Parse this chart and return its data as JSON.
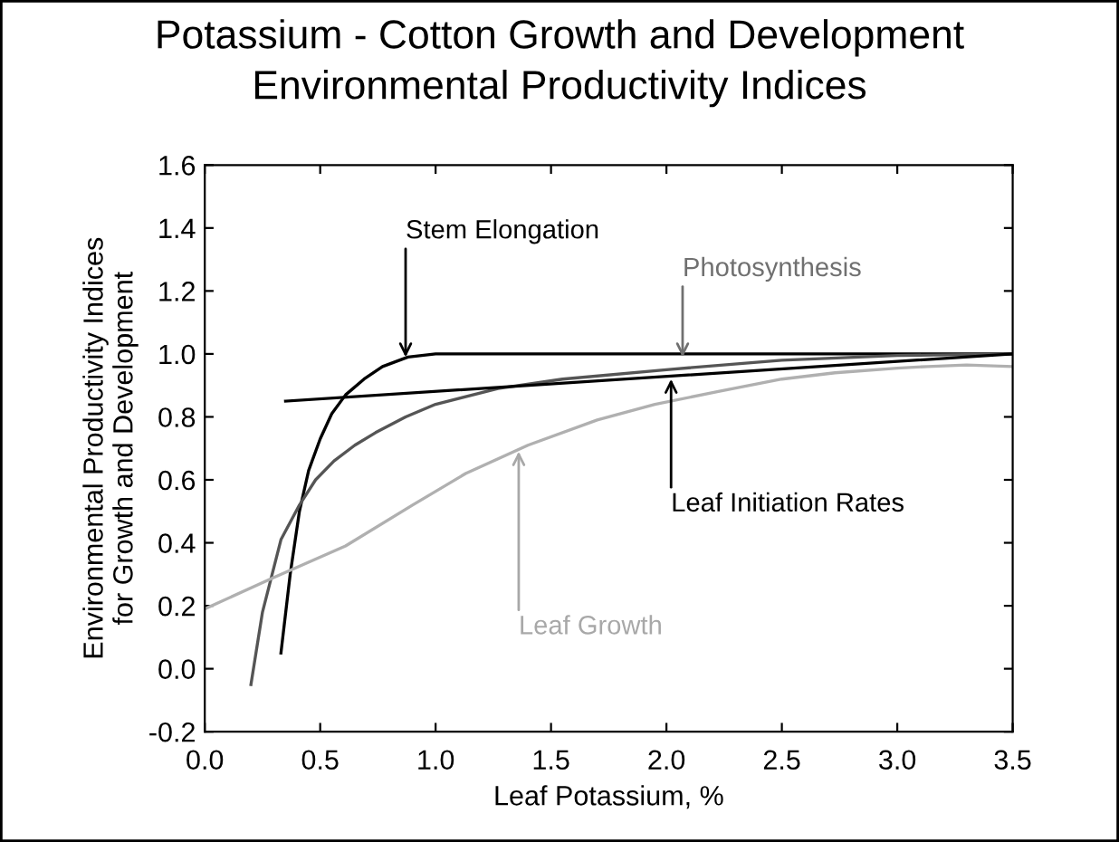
{
  "chart_data": {
    "type": "line",
    "title": "Potassium - Cotton Growth and Development",
    "subtitle": "Environmental Productivity Indices",
    "xlabel": "Leaf Potassium, %",
    "ylabel": "Environmental Productivity Indices\nfor Growth and Development",
    "xlim": [
      0,
      3.5
    ],
    "xticks": [
      {
        "value": 0,
        "label": "0.0"
      },
      0.5,
      {
        "value": 1,
        "label": "1.0"
      },
      1.5,
      {
        "value": 2,
        "label": "2.0"
      },
      2.5,
      {
        "value": 3,
        "label": "3.0"
      },
      3.5
    ],
    "ylim": [
      -0.2,
      1.6
    ],
    "yticks": [
      -0.2,
      {
        "value": 0,
        "label": "0.0"
      },
      0.2,
      0.4,
      0.6,
      0.8,
      {
        "value": 1,
        "label": "1.0"
      },
      1.2,
      1.4,
      1.6
    ],
    "grid": false,
    "legend": false,
    "marker": "none",
    "line_style": "solid",
    "series": [
      {
        "color": "#000000",
        "x": [
          0.33,
          0.37,
          0.41,
          0.45,
          0.5,
          0.55,
          0.61,
          0.69,
          0.77,
          0.88,
          1.0,
          1.5,
          2.0,
          2.5,
          3.0,
          3.5
        ],
        "values": [
          0.05,
          0.3,
          0.5,
          0.63,
          0.73,
          0.81,
          0.87,
          0.92,
          0.96,
          0.99,
          1.0,
          1.0,
          1.0,
          1.0,
          1.0,
          1.0
        ]
      },
      {
        "color": "#555555",
        "x": [
          0.2,
          0.25,
          0.33,
          0.41,
          0.48,
          0.56,
          0.65,
          0.74,
          0.87,
          1.0,
          1.27,
          1.55,
          2.0,
          2.5,
          3.0,
          3.5
        ],
        "values": [
          -0.05,
          0.18,
          0.41,
          0.52,
          0.6,
          0.66,
          0.71,
          0.75,
          0.8,
          0.84,
          0.89,
          0.92,
          0.95,
          0.98,
          0.995,
          1.0
        ]
      },
      {
        "color": "#000000",
        "x": [
          0.35,
          3.5
        ],
        "values": [
          0.85,
          1.0
        ]
      },
      {
        "color": "#b0b0b0",
        "x": [
          0,
          0.3,
          0.61,
          0.9,
          1.13,
          1.4,
          1.7,
          1.95,
          2.22,
          2.5,
          2.73,
          3.0,
          3.13,
          3.3,
          3.5
        ],
        "values": [
          0.19,
          0.29,
          0.39,
          0.52,
          0.62,
          0.71,
          0.79,
          0.84,
          0.88,
          0.92,
          0.94,
          0.955,
          0.96,
          0.965,
          0.96
        ]
      }
    ],
    "annotations": [
      {
        "text": "Stem Elongation",
        "x": 0.87,
        "y": 0.99
      },
      {
        "text": "Photosynthesis",
        "x": 2.07,
        "y": 0.99
      },
      {
        "text": "Leaf Initiation Rates",
        "x": 2.02,
        "y": 0.92
      },
      {
        "text": "Leaf Growth",
        "x": 1.36,
        "y": 0.69
      }
    ]
  }
}
